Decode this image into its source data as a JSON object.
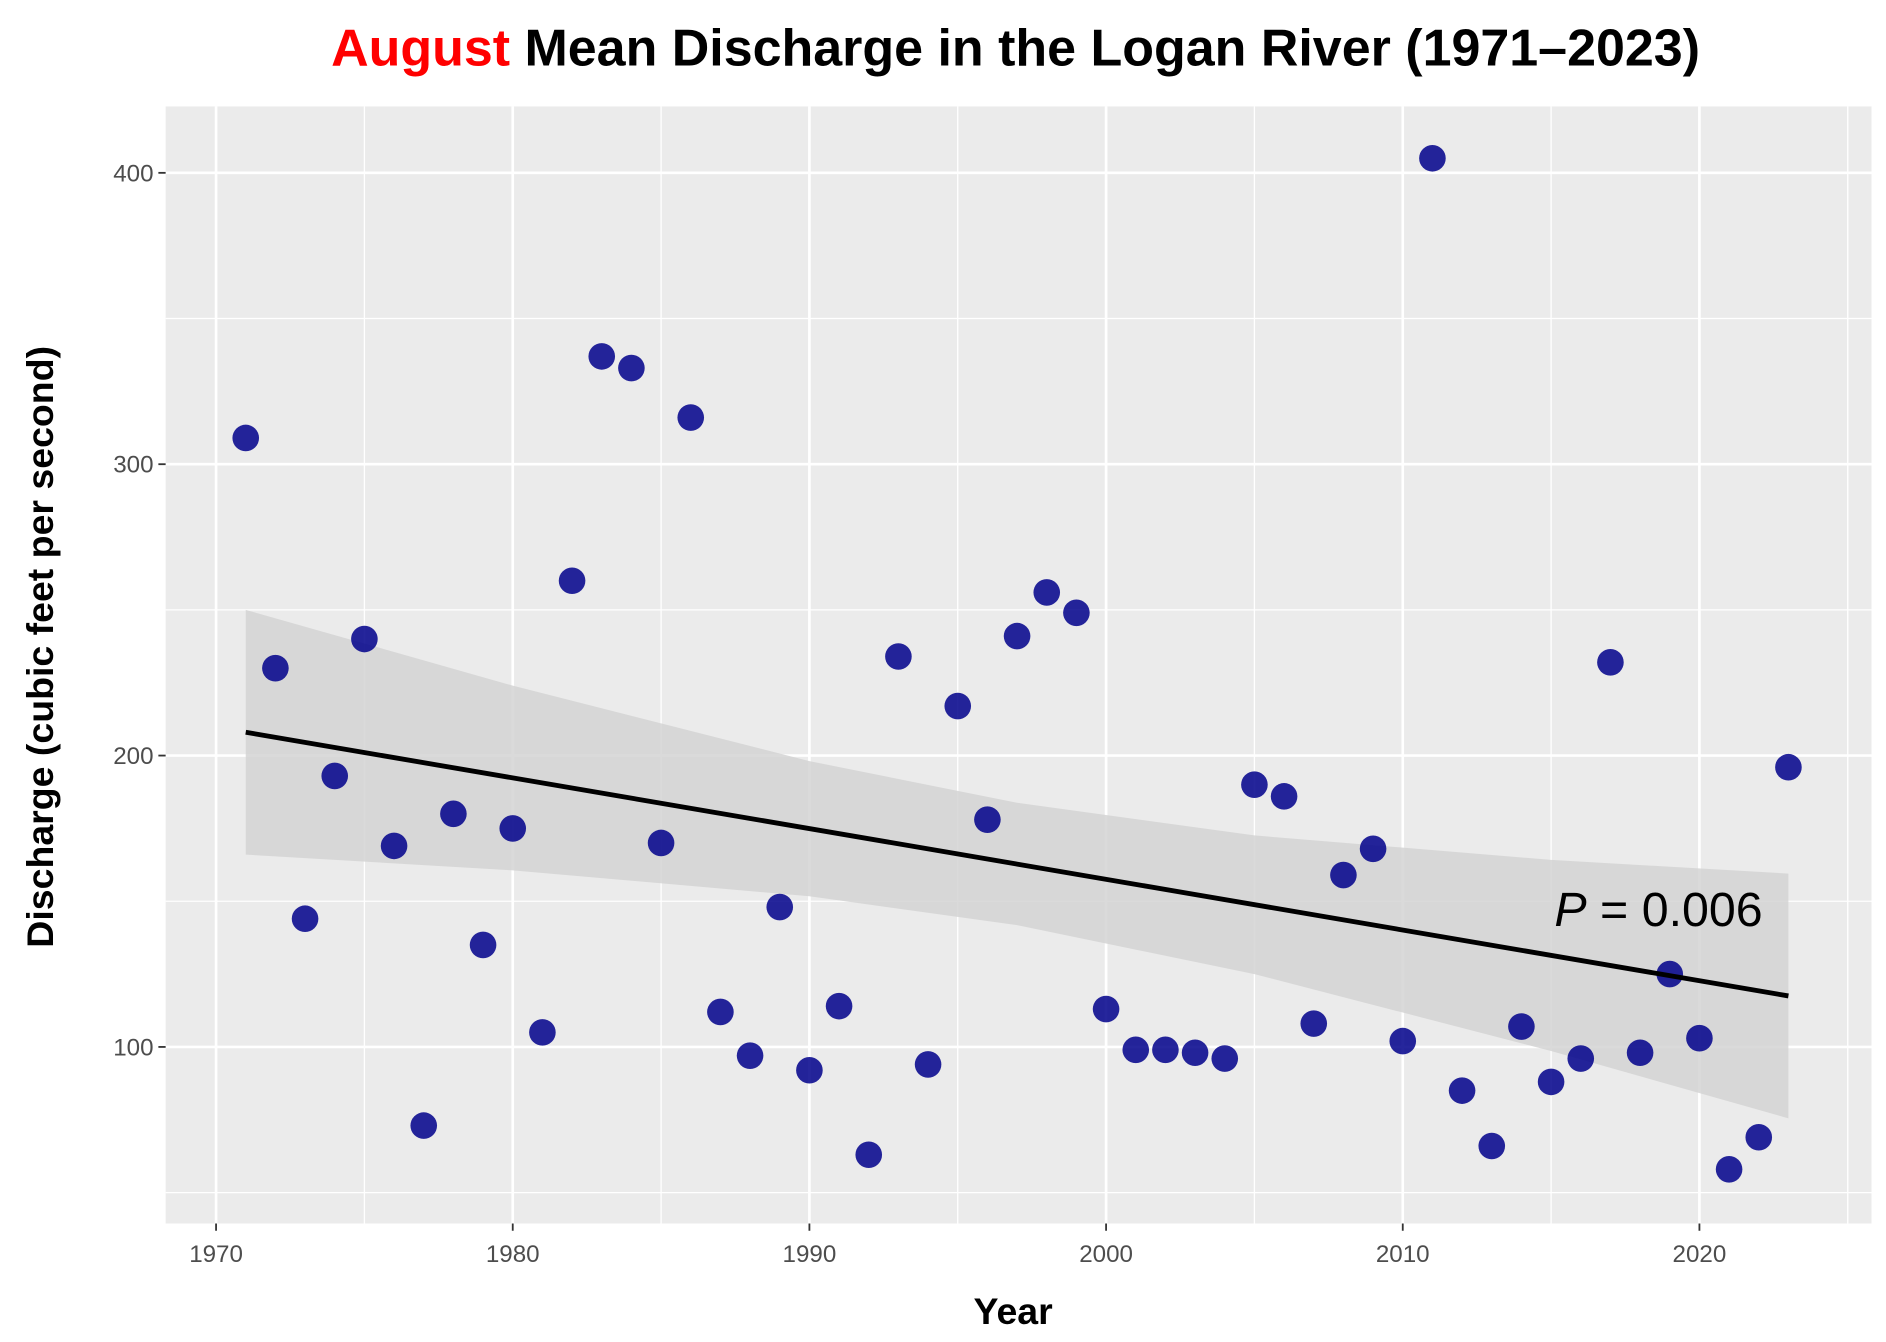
{
  "chart_data": {
    "type": "scatter",
    "title_highlight": "August",
    "title_rest": " Mean Discharge in the Logan River (1971–2023)",
    "xlabel": "Year",
    "ylabel": "Discharge (cubic feet per second)",
    "xlim": [
      1968.3,
      2025.8
    ],
    "ylim": [
      39.4,
      422.8
    ],
    "x_ticks": [
      1970,
      1980,
      1990,
      2000,
      2010,
      2020
    ],
    "y_ticks": [
      100,
      200,
      300,
      400
    ],
    "grid": true,
    "annotation": {
      "italic": "P",
      "rest": " = 0.006"
    },
    "colors": {
      "title_highlight": "#FF0000",
      "points": "#00008B",
      "panel": "#EBEBEB",
      "band": "#D3D3D3",
      "trend": "#000000"
    },
    "points": {
      "x": [
        1971,
        1972,
        1973,
        1974,
        1975,
        1976,
        1977,
        1978,
        1979,
        1980,
        1981,
        1982,
        1983,
        1984,
        1985,
        1986,
        1987,
        1988,
        1989,
        1990,
        1991,
        1992,
        1993,
        1994,
        1995,
        1996,
        1997,
        1998,
        1999,
        2000,
        2001,
        2002,
        2003,
        2004,
        2005,
        2006,
        2007,
        2008,
        2009,
        2010,
        2011,
        2012,
        2013,
        2014,
        2015,
        2016,
        2017,
        2018,
        2019,
        2020,
        2021,
        2022,
        2023
      ],
      "y": [
        309,
        230,
        144,
        193,
        240,
        169,
        73,
        180,
        135,
        175,
        105,
        260,
        337,
        333,
        170,
        316,
        112,
        97,
        148,
        92,
        114,
        63,
        234,
        94,
        217,
        178,
        241,
        256,
        249,
        113,
        99,
        99,
        98,
        96,
        190,
        186,
        108,
        159,
        168,
        102,
        405,
        85,
        66,
        107,
        88,
        96,
        232,
        98,
        125,
        103,
        58,
        69,
        196
      ]
    },
    "trend_line": {
      "x": [
        1971,
        2023
      ],
      "y": [
        208,
        117.5
      ]
    },
    "confidence_band": {
      "x": [
        1971,
        1980,
        1990,
        1997,
        2005,
        2015,
        2023
      ],
      "lower": [
        166,
        160.6,
        151.7,
        141.8,
        125,
        98.6,
        75.5
      ],
      "upper": [
        250,
        224,
        198.1,
        183.8,
        172.6,
        164.2,
        159.5
      ]
    }
  }
}
